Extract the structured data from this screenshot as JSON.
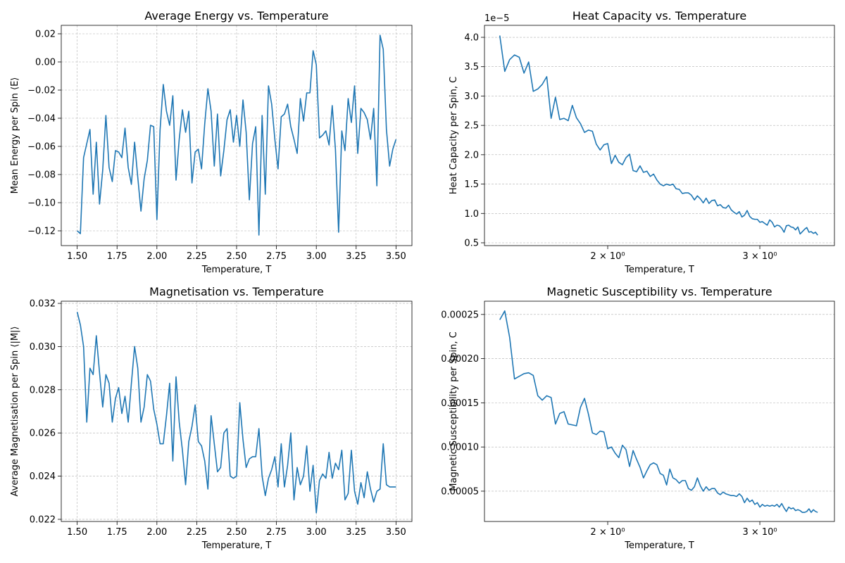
{
  "chart_data": [
    {
      "type": "line",
      "title": "Average Energy vs. Temperature",
      "x_label": "Temperature, T",
      "y_label": "Mean Energy per Spin ⟨E⟩",
      "log_x": false,
      "grid": "both",
      "xlim": [
        1.4,
        3.6
      ],
      "ylim": [
        -0.1305,
        0.026
      ],
      "xticks": [
        {
          "value": 1.5,
          "label": "1.50"
        },
        {
          "value": 1.75,
          "label": "1.75"
        },
        {
          "value": 2,
          "label": "2.00"
        },
        {
          "value": 2.25,
          "label": "2.25"
        },
        {
          "value": 2.5,
          "label": "2.50"
        },
        {
          "value": 2.75,
          "label": "2.75"
        },
        {
          "value": 3,
          "label": "3.00"
        },
        {
          "value": 3.25,
          "label": "3.25"
        },
        {
          "value": 3.5,
          "label": "3.50"
        }
      ],
      "yticks": [
        {
          "value": -0.12,
          "label": "−0.12"
        },
        {
          "value": -0.1,
          "label": "−0.10"
        },
        {
          "value": -0.08,
          "label": "−0.08"
        },
        {
          "value": -0.06,
          "label": "−0.06"
        },
        {
          "value": -0.04,
          "label": "−0.04"
        },
        {
          "value": -0.02,
          "label": "−0.02"
        },
        {
          "value": 0,
          "label": "0.00"
        },
        {
          "value": 0.02,
          "label": "0.02"
        }
      ],
      "color": "#1f77b4",
      "x": [
        1.5,
        1.52,
        1.54,
        1.56,
        1.58,
        1.6,
        1.62,
        1.64,
        1.66,
        1.68,
        1.7,
        1.72,
        1.74,
        1.76,
        1.78,
        1.8,
        1.82,
        1.84,
        1.86,
        1.88,
        1.9,
        1.92,
        1.94,
        1.96,
        1.98,
        2,
        2.02,
        2.04,
        2.06,
        2.08,
        2.1,
        2.12,
        2.14,
        2.16,
        2.18,
        2.2,
        2.22,
        2.24,
        2.26,
        2.28,
        2.3,
        2.32,
        2.34,
        2.36,
        2.38,
        2.4,
        2.42,
        2.44,
        2.46,
        2.48,
        2.5,
        2.52,
        2.54,
        2.56,
        2.58,
        2.6,
        2.62,
        2.64,
        2.66,
        2.68,
        2.7,
        2.72,
        2.74,
        2.76,
        2.78,
        2.8,
        2.82,
        2.84,
        2.86,
        2.88,
        2.9,
        2.92,
        2.94,
        2.96,
        2.98,
        3,
        3.02,
        3.04,
        3.06,
        3.08,
        3.1,
        3.12,
        3.14,
        3.16,
        3.18,
        3.2,
        3.22,
        3.24,
        3.26,
        3.28,
        3.3,
        3.32,
        3.34,
        3.36,
        3.38,
        3.4,
        3.42,
        3.44,
        3.46,
        3.48,
        3.5
      ],
      "values": [
        -0.12,
        -0.122,
        -0.068,
        -0.058,
        -0.048,
        -0.094,
        -0.057,
        -0.101,
        -0.077,
        -0.038,
        -0.075,
        -0.085,
        -0.063,
        -0.064,
        -0.068,
        -0.047,
        -0.075,
        -0.087,
        -0.057,
        -0.082,
        -0.106,
        -0.083,
        -0.07,
        -0.045,
        -0.046,
        -0.112,
        -0.048,
        -0.016,
        -0.035,
        -0.045,
        -0.024,
        -0.084,
        -0.055,
        -0.034,
        -0.05,
        -0.035,
        -0.086,
        -0.064,
        -0.062,
        -0.076,
        -0.044,
        -0.019,
        -0.035,
        -0.074,
        -0.037,
        -0.081,
        -0.063,
        -0.041,
        -0.034,
        -0.057,
        -0.038,
        -0.06,
        -0.027,
        -0.05,
        -0.098,
        -0.058,
        -0.046,
        -0.123,
        -0.038,
        -0.094,
        -0.017,
        -0.03,
        -0.055,
        -0.076,
        -0.039,
        -0.037,
        -0.03,
        -0.046,
        -0.055,
        -0.065,
        -0.026,
        -0.042,
        -0.022,
        -0.022,
        0.008,
        -0.002,
        -0.054,
        -0.052,
        -0.049,
        -0.059,
        -0.031,
        -0.062,
        -0.121,
        -0.049,
        -0.063,
        -0.026,
        -0.043,
        -0.017,
        -0.065,
        -0.033,
        -0.036,
        -0.041,
        -0.055,
        -0.033,
        -0.088,
        0.019,
        0.009,
        -0.048,
        -0.074,
        -0.062,
        -0.055
      ]
    },
    {
      "type": "line",
      "title": "Heat Capacity vs. Temperature",
      "x_label": "Temperature, T",
      "y_label": "Heat Capacity per Spin, C",
      "y_offset_label": "1e−5",
      "log_x": true,
      "grid": "y",
      "xlim": [
        1.44,
        3.66
      ],
      "ylim": [
        0.452,
        4.204
      ],
      "xticks": [
        {
          "value": 2,
          "label": "2 × 10⁰"
        },
        {
          "value": 3,
          "label": "3 × 10⁰"
        }
      ],
      "yticks": [
        {
          "value": 0.5,
          "label": "0.5"
        },
        {
          "value": 1,
          "label": "1.0"
        },
        {
          "value": 1.5,
          "label": "1.5"
        },
        {
          "value": 2,
          "label": "2.0"
        },
        {
          "value": 2.5,
          "label": "2.5"
        },
        {
          "value": 3,
          "label": "3.0"
        },
        {
          "value": 3.5,
          "label": "3.5"
        },
        {
          "value": 4,
          "label": "4.0"
        }
      ],
      "color": "#1f77b4",
      "x": [
        1.5,
        1.52,
        1.54,
        1.56,
        1.58,
        1.6,
        1.62,
        1.64,
        1.66,
        1.68,
        1.7,
        1.72,
        1.74,
        1.76,
        1.78,
        1.8,
        1.82,
        1.84,
        1.86,
        1.88,
        1.9,
        1.92,
        1.94,
        1.96,
        1.98,
        2,
        2.02,
        2.04,
        2.06,
        2.08,
        2.1,
        2.12,
        2.14,
        2.16,
        2.18,
        2.2,
        2.22,
        2.24,
        2.26,
        2.28,
        2.3,
        2.32,
        2.34,
        2.36,
        2.38,
        2.4,
        2.42,
        2.44,
        2.46,
        2.48,
        2.5,
        2.52,
        2.54,
        2.56,
        2.58,
        2.6,
        2.62,
        2.64,
        2.66,
        2.68,
        2.7,
        2.72,
        2.74,
        2.76,
        2.78,
        2.8,
        2.82,
        2.84,
        2.86,
        2.88,
        2.9,
        2.92,
        2.94,
        2.96,
        2.98,
        3,
        3.02,
        3.04,
        3.06,
        3.08,
        3.1,
        3.12,
        3.14,
        3.16,
        3.18,
        3.2,
        3.22,
        3.24,
        3.26,
        3.28,
        3.3,
        3.32,
        3.34,
        3.36,
        3.38,
        3.4,
        3.42,
        3.44,
        3.46,
        3.48,
        3.5
      ],
      "values": [
        4.03,
        3.42,
        3.62,
        3.7,
        3.66,
        3.39,
        3.58,
        3.08,
        3.12,
        3.2,
        3.33,
        2.62,
        2.98,
        2.6,
        2.62,
        2.58,
        2.84,
        2.63,
        2.53,
        2.38,
        2.42,
        2.4,
        2.18,
        2.08,
        2.17,
        2.19,
        1.85,
        1.99,
        1.87,
        1.83,
        1.95,
        2.01,
        1.73,
        1.71,
        1.81,
        1.7,
        1.72,
        1.63,
        1.67,
        1.57,
        1.5,
        1.47,
        1.5,
        1.48,
        1.5,
        1.42,
        1.41,
        1.34,
        1.35,
        1.35,
        1.31,
        1.23,
        1.3,
        1.25,
        1.18,
        1.26,
        1.17,
        1.22,
        1.23,
        1.13,
        1.15,
        1.1,
        1.09,
        1.14,
        1.06,
        1.02,
        0.99,
        1.03,
        0.94,
        0.97,
        1.05,
        0.95,
        0.91,
        0.9,
        0.9,
        0.85,
        0.86,
        0.83,
        0.8,
        0.89,
        0.85,
        0.77,
        0.8,
        0.79,
        0.75,
        0.68,
        0.79,
        0.8,
        0.77,
        0.76,
        0.72,
        0.77,
        0.65,
        0.69,
        0.73,
        0.76,
        0.68,
        0.69,
        0.66,
        0.68,
        0.63
      ]
    },
    {
      "type": "line",
      "title": "Magnetisation vs. Temperature",
      "x_label": "Temperature, T",
      "y_label": "Average Magnetisation per Spin ⟨|M|⟩",
      "log_x": false,
      "grid": "both",
      "xlim": [
        1.4,
        3.6
      ],
      "ylim": [
        0.0219,
        0.0321
      ],
      "xticks": [
        {
          "value": 1.5,
          "label": "1.50"
        },
        {
          "value": 1.75,
          "label": "1.75"
        },
        {
          "value": 2,
          "label": "2.00"
        },
        {
          "value": 2.25,
          "label": "2.25"
        },
        {
          "value": 2.5,
          "label": "2.50"
        },
        {
          "value": 2.75,
          "label": "2.75"
        },
        {
          "value": 3,
          "label": "3.00"
        },
        {
          "value": 3.25,
          "label": "3.25"
        },
        {
          "value": 3.5,
          "label": "3.50"
        }
      ],
      "yticks": [
        {
          "value": 0.022,
          "label": "0.022"
        },
        {
          "value": 0.024,
          "label": "0.024"
        },
        {
          "value": 0.026,
          "label": "0.026"
        },
        {
          "value": 0.028,
          "label": "0.028"
        },
        {
          "value": 0.03,
          "label": "0.030"
        },
        {
          "value": 0.032,
          "label": "0.032"
        }
      ],
      "color": "#1f77b4",
      "x": [
        1.5,
        1.52,
        1.54,
        1.56,
        1.58,
        1.6,
        1.62,
        1.64,
        1.66,
        1.68,
        1.7,
        1.72,
        1.74,
        1.76,
        1.78,
        1.8,
        1.82,
        1.84,
        1.86,
        1.88,
        1.9,
        1.92,
        1.94,
        1.96,
        1.98,
        2,
        2.02,
        2.04,
        2.06,
        2.08,
        2.1,
        2.12,
        2.14,
        2.16,
        2.18,
        2.2,
        2.22,
        2.24,
        2.26,
        2.28,
        2.3,
        2.32,
        2.34,
        2.36,
        2.38,
        2.4,
        2.42,
        2.44,
        2.46,
        2.48,
        2.5,
        2.52,
        2.54,
        2.56,
        2.58,
        2.6,
        2.62,
        2.64,
        2.66,
        2.68,
        2.7,
        2.72,
        2.74,
        2.76,
        2.78,
        2.8,
        2.82,
        2.84,
        2.86,
        2.88,
        2.9,
        2.92,
        2.94,
        2.96,
        2.98,
        3,
        3.02,
        3.04,
        3.06,
        3.08,
        3.1,
        3.12,
        3.14,
        3.16,
        3.18,
        3.2,
        3.22,
        3.24,
        3.26,
        3.28,
        3.3,
        3.32,
        3.34,
        3.36,
        3.38,
        3.4,
        3.42,
        3.44,
        3.46,
        3.48,
        3.5
      ],
      "values": [
        0.0316,
        0.031,
        0.03,
        0.0265,
        0.029,
        0.0287,
        0.0305,
        0.0288,
        0.0272,
        0.0287,
        0.0283,
        0.0265,
        0.0276,
        0.0281,
        0.0269,
        0.0277,
        0.0265,
        0.0283,
        0.03,
        0.029,
        0.0265,
        0.0272,
        0.0287,
        0.0284,
        0.0271,
        0.0264,
        0.0255,
        0.0255,
        0.0268,
        0.0283,
        0.0247,
        0.0286,
        0.0265,
        0.0252,
        0.0236,
        0.0256,
        0.0263,
        0.0273,
        0.0256,
        0.0254,
        0.0247,
        0.0234,
        0.0268,
        0.0255,
        0.0242,
        0.0244,
        0.026,
        0.0262,
        0.024,
        0.0239,
        0.024,
        0.0274,
        0.0257,
        0.0244,
        0.0248,
        0.0249,
        0.0249,
        0.0262,
        0.024,
        0.0231,
        0.0239,
        0.0243,
        0.0249,
        0.0235,
        0.0255,
        0.0235,
        0.0245,
        0.026,
        0.0229,
        0.0244,
        0.0236,
        0.024,
        0.0254,
        0.0233,
        0.0245,
        0.0223,
        0.0238,
        0.0241,
        0.0239,
        0.0251,
        0.0239,
        0.0246,
        0.0243,
        0.0252,
        0.0229,
        0.0232,
        0.0252,
        0.0233,
        0.0227,
        0.0237,
        0.023,
        0.0242,
        0.0234,
        0.0228,
        0.0233,
        0.0234,
        0.0255,
        0.0236,
        0.0235,
        0.0235,
        0.0235
      ]
    },
    {
      "type": "line",
      "title": "Magnetic Susceptibility vs. Temperature",
      "x_label": "Temperature, T",
      "y_label": "Magnetic Susceptibility per Spin, C",
      "log_x": true,
      "grid": "y",
      "xlim": [
        1.44,
        3.66
      ],
      "ylim": [
        1.57e-05,
        0.000265
      ],
      "xticks": [
        {
          "value": 2,
          "label": "2 × 10⁰"
        },
        {
          "value": 3,
          "label": "3 × 10⁰"
        }
      ],
      "yticks": [
        {
          "value": 5e-05,
          "label": "0.00005"
        },
        {
          "value": 0.0001,
          "label": "0.00010"
        },
        {
          "value": 0.00015,
          "label": "0.00015"
        },
        {
          "value": 0.0002,
          "label": "0.00020"
        },
        {
          "value": 0.00025,
          "label": "0.00025"
        }
      ],
      "color": "#1f77b4",
      "x": [
        1.5,
        1.52,
        1.54,
        1.56,
        1.58,
        1.6,
        1.62,
        1.64,
        1.66,
        1.68,
        1.7,
        1.72,
        1.74,
        1.76,
        1.78,
        1.8,
        1.82,
        1.84,
        1.86,
        1.88,
        1.9,
        1.92,
        1.94,
        1.96,
        1.98,
        2,
        2.02,
        2.04,
        2.06,
        2.08,
        2.1,
        2.12,
        2.14,
        2.16,
        2.18,
        2.2,
        2.22,
        2.24,
        2.26,
        2.28,
        2.3,
        2.32,
        2.34,
        2.36,
        2.38,
        2.4,
        2.42,
        2.44,
        2.46,
        2.48,
        2.5,
        2.52,
        2.54,
        2.56,
        2.58,
        2.6,
        2.62,
        2.64,
        2.66,
        2.68,
        2.7,
        2.72,
        2.74,
        2.76,
        2.78,
        2.8,
        2.82,
        2.84,
        2.86,
        2.88,
        2.9,
        2.92,
        2.94,
        2.96,
        2.98,
        3,
        3.02,
        3.04,
        3.06,
        3.08,
        3.1,
        3.12,
        3.14,
        3.16,
        3.18,
        3.2,
        3.22,
        3.24,
        3.26,
        3.28,
        3.3,
        3.32,
        3.34,
        3.36,
        3.38,
        3.4,
        3.42,
        3.44,
        3.46,
        3.48,
        3.5
      ],
      "values": [
        0.000244,
        0.000254,
        0.000224,
        0.000177,
        0.00018,
        0.000183,
        0.000184,
        0.000181,
        0.000158,
        0.000153,
        0.000158,
        0.000156,
        0.000126,
        0.000138,
        0.00014,
        0.000126,
        0.000125,
        0.000124,
        0.000145,
        0.000155,
        0.000137,
        0.000116,
        0.000114,
        0.000118,
        0.000117,
        9.8e-05,
        0.0001,
        9.3e-05,
        8.8e-05,
        0.000102,
        9.7e-05,
        7.8e-05,
        9.6e-05,
        8.6e-05,
        7.7e-05,
        6.5e-05,
        7.3e-05,
        8e-05,
        8.2e-05,
        8e-05,
        7e-05,
        6.8e-05,
        5.7e-05,
        7.5e-05,
        6.5e-05,
        6.3e-05,
        5.9e-05,
        6.2e-05,
        6.2e-05,
        5.3e-05,
        5.1e-05,
        5.5e-05,
        6.5e-05,
        5.6e-05,
        5e-05,
        5.5e-05,
        5.1e-05,
        5.3e-05,
        5.3e-05,
        4.8e-05,
        4.6e-05,
        4.9e-05,
        4.7e-05,
        4.6e-05,
        4.5e-05,
        4.5e-05,
        4.4e-05,
        4.7e-05,
        4.4e-05,
        3.7e-05,
        4.2e-05,
        3.8e-05,
        4e-05,
        3.5e-05,
        3.7e-05,
        3.2e-05,
        3.5e-05,
        3.3e-05,
        3.4e-05,
        3.3e-05,
        3.4e-05,
        3.3e-05,
        3.5e-05,
        3.2e-05,
        3.6e-05,
        3.1e-05,
        2.7e-05,
        3.2e-05,
        3e-05,
        3.1e-05,
        2.8e-05,
        2.9e-05,
        2.8e-05,
        2.6e-05,
        2.6e-05,
        2.7e-05,
        3e-05,
        2.6e-05,
        2.9e-05,
        2.7e-05,
        2.6e-05
      ]
    }
  ]
}
